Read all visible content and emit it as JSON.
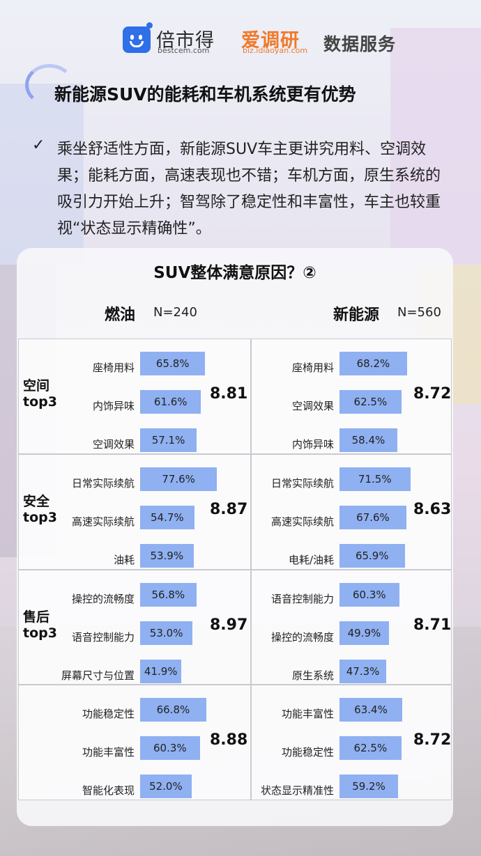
{
  "header": {
    "brand1": "倍市得",
    "brand1_url": "bestcem.com",
    "brand2": "爱调研",
    "brand2_url": "biz.idiaoyan.com",
    "brand3": "数据服务"
  },
  "title": "新能源SUV的能耗和车机系统更有优势",
  "bullet": "乘坐舒适性方面，新能源SUV车主更讲究用料、空调效果；能耗方面，高速表现也不错；车机方面，原生系统的吸引力开始上升；智驾除了稳定性和丰富性，车主也较重视“状态显示精确性”。",
  "chart_data": {
    "type": "bar",
    "title": "SUV整体满意原因？②",
    "value_unit": "%",
    "columns": [
      {
        "name": "燃油",
        "n": "N=240"
      },
      {
        "name": "新能源",
        "n": "N=560"
      }
    ],
    "groups": [
      {
        "label": "空间\ntop3",
        "fuel": {
          "score": "8.81",
          "items": [
            {
              "label": "座椅用料",
              "value": 65.8
            },
            {
              "label": "内饰异味",
              "value": 61.6
            },
            {
              "label": "空调效果",
              "value": 57.1
            }
          ]
        },
        "ev": {
          "score": "8.72",
          "items": [
            {
              "label": "座椅用料",
              "value": 68.2
            },
            {
              "label": "空调效果",
              "value": 62.5
            },
            {
              "label": "内饰异味",
              "value": 58.4
            }
          ]
        }
      },
      {
        "label": "安全\ntop3",
        "fuel": {
          "score": "8.87",
          "items": [
            {
              "label": "日常实际续航",
              "value": 77.6
            },
            {
              "label": "高速实际续航",
              "value": 54.7
            },
            {
              "label": "油耗",
              "value": 53.9
            }
          ]
        },
        "ev": {
          "score": "8.63",
          "items": [
            {
              "label": "日常实际续航",
              "value": 71.5
            },
            {
              "label": "高速实际续航",
              "value": 67.6
            },
            {
              "label": "电耗/油耗",
              "value": 65.9
            }
          ]
        }
      },
      {
        "label": "售后\ntop3",
        "fuel": {
          "score": "8.97",
          "items": [
            {
              "label": "操控的流畅度",
              "value": 56.8
            },
            {
              "label": "语音控制能力",
              "value": 53.0
            },
            {
              "label": "屏幕尺寸与位置",
              "value": 41.9
            }
          ]
        },
        "ev": {
          "score": "8.71",
          "items": [
            {
              "label": "语音控制能力",
              "value": 60.3
            },
            {
              "label": "操控的流畅度",
              "value": 49.9
            },
            {
              "label": "原生系统",
              "value": 47.3
            }
          ]
        }
      },
      {
        "label": "",
        "fuel": {
          "score": "8.88",
          "items": [
            {
              "label": "功能稳定性",
              "value": 66.8
            },
            {
              "label": "功能丰富性",
              "value": 60.3
            },
            {
              "label": "智能化表现",
              "value": 52.0
            }
          ]
        },
        "ev": {
          "score": "8.72",
          "items": [
            {
              "label": "功能丰富性",
              "value": 63.4
            },
            {
              "label": "功能稳定性",
              "value": 62.5
            },
            {
              "label": "状态显示精准性",
              "value": 59.2
            }
          ]
        }
      }
    ]
  }
}
